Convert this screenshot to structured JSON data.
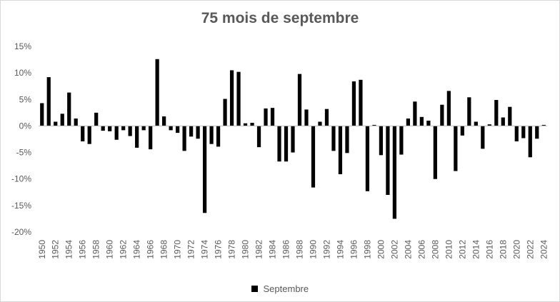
{
  "chart_data": {
    "type": "bar",
    "title": "75 mois de septembre",
    "xlabel": "",
    "ylabel": "",
    "ylim": [
      -20,
      15
    ],
    "y_ticks": [
      15,
      10,
      5,
      0,
      -5,
      -10,
      -15,
      -20
    ],
    "y_tick_format": "percent",
    "x": [
      1950,
      1951,
      1952,
      1953,
      1954,
      1955,
      1956,
      1957,
      1958,
      1959,
      1960,
      1961,
      1962,
      1963,
      1964,
      1965,
      1966,
      1967,
      1968,
      1969,
      1970,
      1971,
      1972,
      1973,
      1974,
      1975,
      1976,
      1977,
      1978,
      1979,
      1980,
      1981,
      1982,
      1983,
      1984,
      1985,
      1986,
      1987,
      1988,
      1989,
      1990,
      1991,
      1992,
      1993,
      1994,
      1995,
      1996,
      1997,
      1998,
      1999,
      2000,
      2001,
      2002,
      2003,
      2004,
      2005,
      2006,
      2007,
      2008,
      2009,
      2010,
      2011,
      2012,
      2013,
      2014,
      2015,
      2016,
      2017,
      2018,
      2019,
      2020,
      2021,
      2022,
      2023,
      2024
    ],
    "x_tick_labels": [
      "1950",
      "1952",
      "1954",
      "1956",
      "1958",
      "1960",
      "1962",
      "1964",
      "1966",
      "1968",
      "1970",
      "1972",
      "1974",
      "1976",
      "1978",
      "1980",
      "1982",
      "1984",
      "1986",
      "1988",
      "1990",
      "1992",
      "1994",
      "1996",
      "1998",
      "2000",
      "2002",
      "2004",
      "2006",
      "2008",
      "2010",
      "2012",
      "2014",
      "2016",
      "2018",
      "2020",
      "2022",
      "2024"
    ],
    "grid": false,
    "legend": "bottom",
    "series": [
      {
        "name": "Septembre",
        "color": "#000000",
        "values": [
          4.3,
          9.2,
          0.8,
          2.3,
          6.3,
          1.4,
          -2.9,
          -3.4,
          2.5,
          -0.9,
          -1.0,
          -2.6,
          -0.8,
          -1.9,
          -4.1,
          -0.8,
          -4.4,
          12.6,
          1.8,
          -0.8,
          -1.3,
          -4.7,
          -2.0,
          -2.4,
          -16.4,
          -3.4,
          -3.9,
          5.1,
          10.5,
          10.2,
          0.5,
          0.6,
          -4.0,
          3.3,
          3.4,
          -6.7,
          -6.7,
          -5.0,
          9.8,
          3.1,
          -11.6,
          0.8,
          3.2,
          -4.7,
          -9.1,
          -5.1,
          8.4,
          8.7,
          -12.3,
          0.2,
          -5.5,
          -13.0,
          -17.5,
          -5.4,
          1.4,
          4.6,
          1.7,
          1.0,
          -10.0,
          4.0,
          6.6,
          -8.5,
          -1.8,
          5.4,
          0.8,
          -4.3,
          0.3,
          4.9,
          1.6,
          3.6,
          -2.9,
          -2.3,
          -5.9,
          -2.4,
          0.2
        ]
      }
    ]
  }
}
